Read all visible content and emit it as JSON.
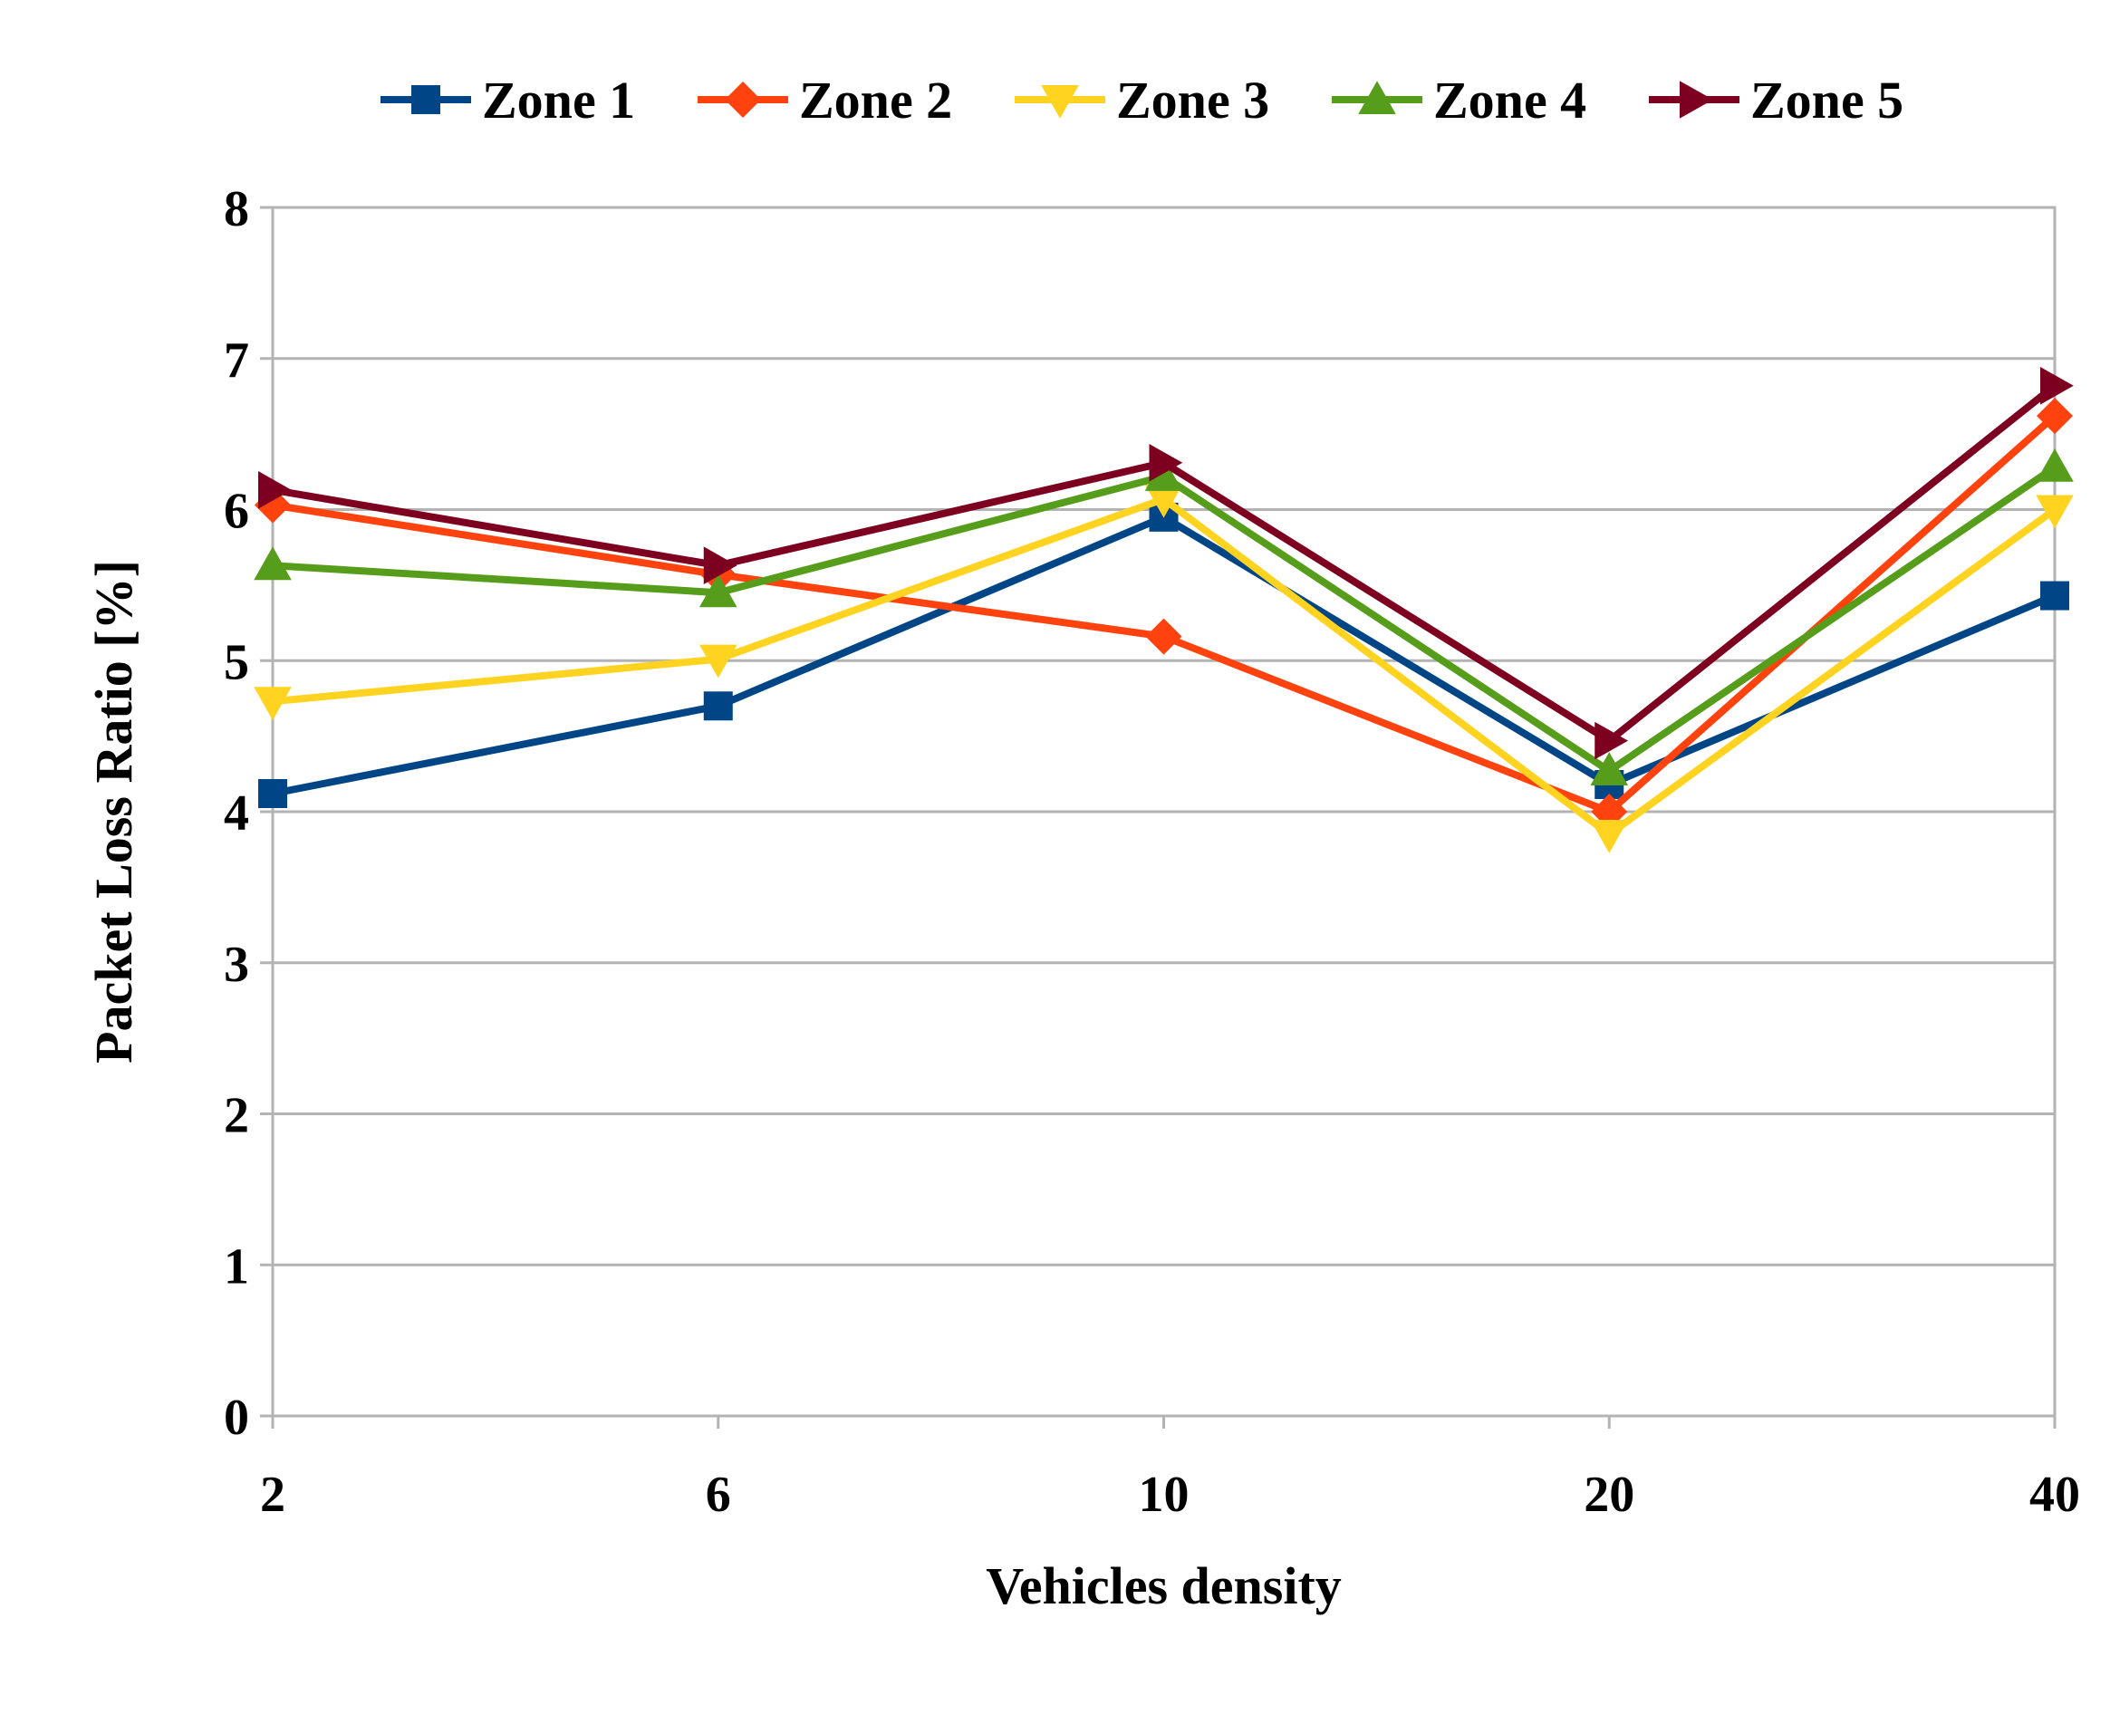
{
  "chart_data": {
    "type": "line",
    "title": "",
    "xlabel": "Vehicles density",
    "ylabel": "Packet Loss Ratio [%]",
    "categories": [
      "2",
      "6",
      "10",
      "20",
      "40"
    ],
    "ylim": [
      0,
      8
    ],
    "yticks": [
      "0",
      "1",
      "2",
      "3",
      "4",
      "5",
      "6",
      "7",
      "8"
    ],
    "grid": true,
    "legend_position": "top",
    "series": [
      {
        "name": "Zone 1",
        "color": "#004586",
        "marker": "square",
        "values": [
          4.12,
          4.7,
          5.95,
          4.18,
          5.43
        ]
      },
      {
        "name": "Zone 2",
        "color": "#ff420e",
        "marker": "diamond",
        "values": [
          6.03,
          5.57,
          5.16,
          4.0,
          6.62
        ]
      },
      {
        "name": "Zone 3",
        "color": "#ffd320",
        "marker": "triangle-down",
        "values": [
          4.73,
          5.01,
          6.07,
          3.85,
          6.0
        ]
      },
      {
        "name": "Zone 4",
        "color": "#579d1c",
        "marker": "triangle-up",
        "values": [
          5.63,
          5.45,
          6.22,
          4.27,
          6.28
        ]
      },
      {
        "name": "Zone 5",
        "color": "#7e0021",
        "marker": "triangle-right",
        "values": [
          6.13,
          5.63,
          6.31,
          4.47,
          6.82
        ]
      }
    ]
  }
}
